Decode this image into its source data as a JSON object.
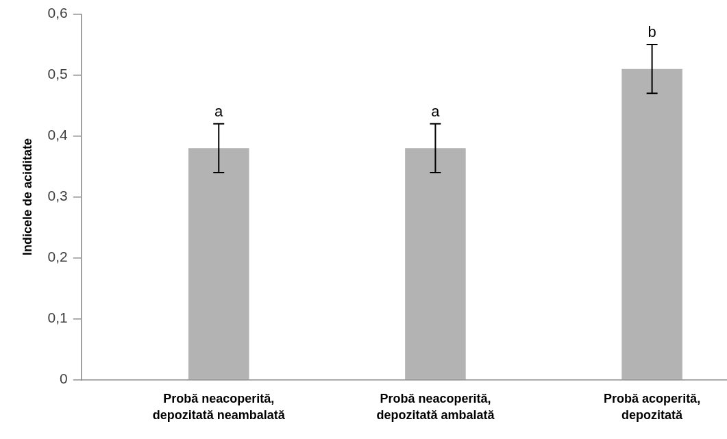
{
  "chart_data": {
    "type": "bar",
    "ylabel": "Indicele de aciditate",
    "categories": [
      "Probă neacoperită, depozitată neambalată",
      "Probă neacoperită, depozitată ambalată",
      "Probă acoperită, depozitată"
    ],
    "values": [
      0.38,
      0.38,
      0.51
    ],
    "errors": [
      0.04,
      0.04,
      0.04
    ],
    "color": "#b3b3b3",
    "ylim": [
      0,
      0.6
    ],
    "yticks": [
      0,
      {
        "value": 0.1,
        "label": "0,1"
      },
      {
        "value": 0.2,
        "label": "0,2"
      },
      {
        "value": 0.3,
        "label": "0,3"
      },
      {
        "value": 0.4,
        "label": "0,4"
      },
      {
        "value": 0.5,
        "label": "0,5"
      },
      {
        "value": 0.6,
        "label": "0,6"
      }
    ],
    "annotations": [
      {
        "text": "a",
        "x": "Probă neacoperită, depozitată neambalată",
        "y": 0.42
      },
      {
        "text": "a",
        "x": "Probă neacoperită, depozitată ambalată",
        "y": 0.42
      },
      {
        "text": "b",
        "x": "Probă acoperită, depozitată",
        "y": 0.55
      }
    ],
    "grid": false,
    "legend": false
  }
}
